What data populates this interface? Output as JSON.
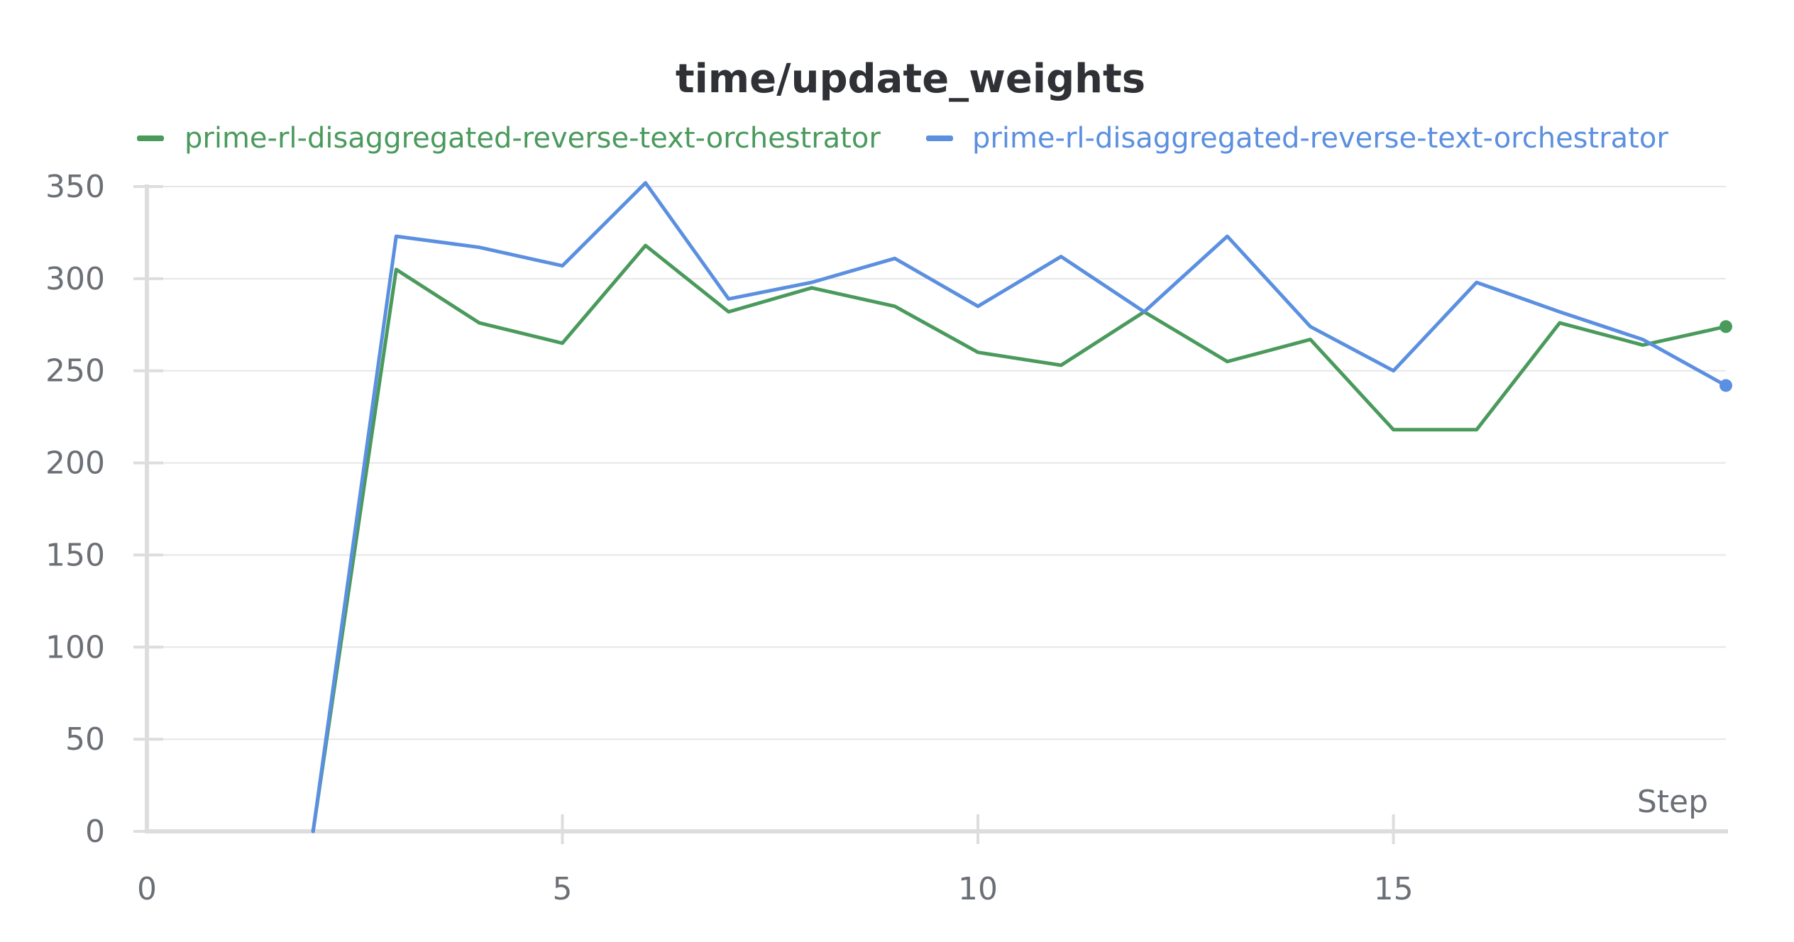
{
  "chart_data": {
    "type": "line",
    "title": "time/update_weights",
    "xlabel": "Step",
    "ylabel": "",
    "xlim": [
      0,
      19
    ],
    "ylim": [
      0,
      350
    ],
    "xticks": [
      "0",
      "5",
      "10",
      "15"
    ],
    "yticks": [
      "0",
      "50",
      "100",
      "150",
      "200",
      "250",
      "300",
      "350"
    ],
    "grid": true,
    "legend_position": "top",
    "x": [
      2,
      3,
      4,
      5,
      6,
      7,
      8,
      9,
      10,
      11,
      12,
      13,
      14,
      15,
      16,
      17,
      18,
      19
    ],
    "series": [
      {
        "name": "prime-rl-disaggregated-reverse-text-orchestrator",
        "color": "#4a9a5c",
        "values": [
          0,
          305,
          276,
          265,
          318,
          282,
          295,
          285,
          260,
          253,
          282,
          255,
          267,
          218,
          218,
          276,
          264,
          274
        ]
      },
      {
        "name": "prime-rl-disaggregated-reverse-text-orchestrator",
        "color": "#5b8fe0",
        "values": [
          0,
          323,
          317,
          307,
          352,
          289,
          298,
          311,
          285,
          312,
          282,
          323,
          274,
          250,
          298,
          282,
          267,
          242
        ]
      }
    ]
  }
}
